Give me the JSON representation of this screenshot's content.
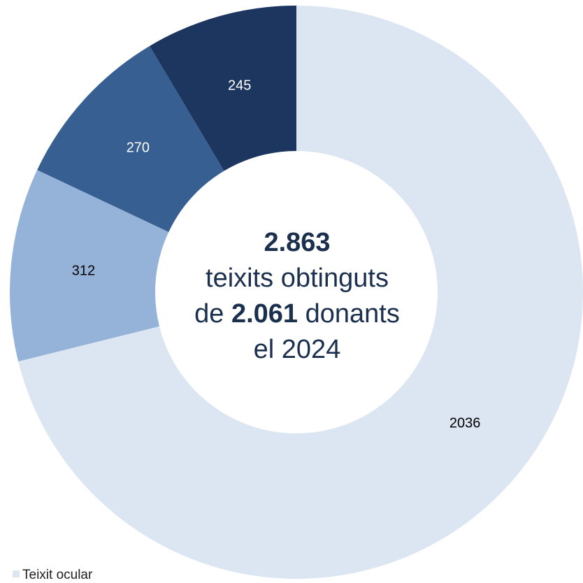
{
  "chart_data": {
    "type": "pie",
    "donut": true,
    "categories": [
      "Teixit ocular",
      "",
      "",
      ""
    ],
    "values": [
      2036,
      312,
      270,
      245
    ],
    "colors": [
      "#dce5f2",
      "#95b2d8",
      "#375f92",
      "#1c365f"
    ],
    "label_colors": [
      "#000000",
      "#000000",
      "#ffffff",
      "#ffffff"
    ],
    "data_labels": [
      "2036",
      "312",
      "270",
      "245"
    ],
    "start_angle_deg": 0,
    "direction": "clockwise"
  },
  "center": {
    "total": "2.863",
    "line2": "teixits obtinguts",
    "line3_prefix": "de",
    "donors": "2.061",
    "line3_suffix": "donants",
    "line4": "el 2024"
  },
  "legend": {
    "item0_label": "Teixit ocular"
  }
}
